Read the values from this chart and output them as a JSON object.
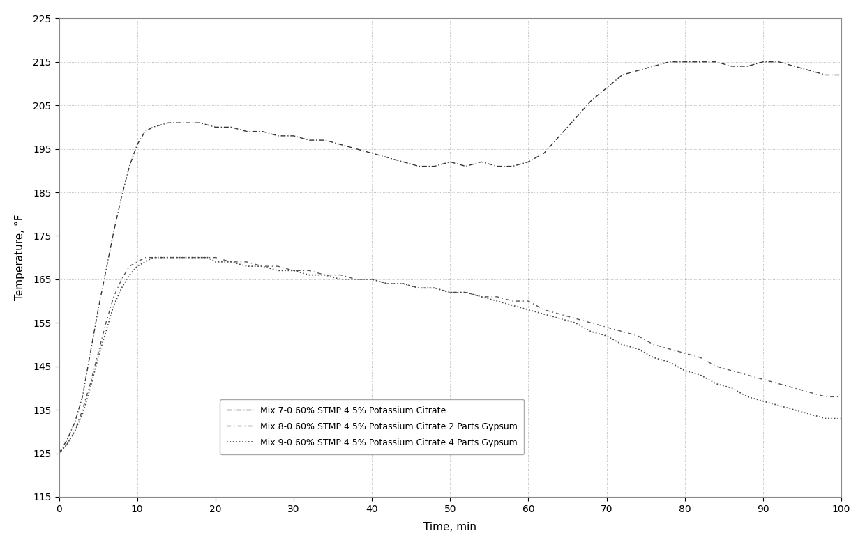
{
  "title": "",
  "xlabel": "Time, min",
  "ylabel": "Temperature, °F",
  "xlim": [
    0,
    100
  ],
  "ylim": [
    115,
    225
  ],
  "yticks": [
    115,
    125,
    135,
    145,
    155,
    165,
    175,
    185,
    195,
    205,
    215,
    225
  ],
  "xticks": [
    0,
    10,
    20,
    30,
    40,
    50,
    60,
    70,
    80,
    90,
    100
  ],
  "background_color": "#ffffff",
  "grid_color": "#888888",
  "legend_labels": [
    "Mix 7-0.60% STMP 4.5% Potassium Citrate",
    "Mix 8-0.60% STMP 4.5% Potassium Citrate 2 Parts Gypsum",
    "Mix 9-0.60% STMP 4.5% Potassium Citrate 4 Parts Gypsum"
  ],
  "mix7_x": [
    0,
    1,
    2,
    3,
    4,
    5,
    6,
    7,
    8,
    9,
    10,
    11,
    12,
    14,
    16,
    18,
    20,
    22,
    24,
    26,
    28,
    30,
    32,
    34,
    36,
    38,
    40,
    42,
    44,
    46,
    48,
    50,
    52,
    54,
    56,
    58,
    60,
    62,
    64,
    65,
    67,
    68,
    70,
    72,
    74,
    76,
    78,
    80,
    82,
    84,
    86,
    88,
    90,
    92,
    94,
    96,
    98,
    100
  ],
  "mix7_y": [
    125,
    128,
    132,
    138,
    148,
    158,
    167,
    176,
    184,
    191,
    196,
    199,
    200,
    201,
    201,
    201,
    200,
    200,
    199,
    199,
    198,
    198,
    197,
    197,
    196,
    195,
    194,
    193,
    192,
    191,
    191,
    192,
    191,
    192,
    191,
    191,
    192,
    194,
    198,
    200,
    204,
    206,
    209,
    212,
    213,
    214,
    215,
    215,
    215,
    215,
    214,
    214,
    215,
    215,
    214,
    213,
    212,
    212
  ],
  "mix8_x": [
    0,
    1,
    2,
    3,
    4,
    5,
    6,
    7,
    8,
    9,
    10,
    11,
    12,
    13,
    14,
    15,
    16,
    17,
    18,
    19,
    20,
    22,
    24,
    26,
    28,
    30,
    32,
    34,
    36,
    38,
    40,
    42,
    44,
    46,
    48,
    50,
    52,
    54,
    56,
    58,
    60,
    62,
    64,
    66,
    68,
    70,
    72,
    74,
    76,
    78,
    80,
    82,
    84,
    86,
    88,
    90,
    92,
    94,
    96,
    98,
    100
  ],
  "mix8_y": [
    125,
    127,
    130,
    135,
    141,
    148,
    155,
    161,
    165,
    168,
    169,
    170,
    170,
    170,
    170,
    170,
    170,
    170,
    170,
    170,
    170,
    169,
    169,
    168,
    168,
    167,
    167,
    166,
    166,
    165,
    165,
    164,
    164,
    163,
    163,
    162,
    162,
    161,
    161,
    160,
    160,
    158,
    157,
    156,
    155,
    154,
    153,
    152,
    150,
    149,
    148,
    147,
    145,
    144,
    143,
    142,
    141,
    140,
    139,
    138,
    138
  ],
  "mix9_x": [
    0,
    1,
    2,
    3,
    4,
    5,
    6,
    7,
    8,
    9,
    10,
    11,
    12,
    13,
    14,
    15,
    16,
    17,
    18,
    19,
    20,
    22,
    24,
    26,
    28,
    30,
    32,
    34,
    36,
    38,
    40,
    42,
    44,
    46,
    48,
    50,
    52,
    54,
    56,
    58,
    60,
    62,
    64,
    66,
    68,
    70,
    72,
    74,
    76,
    78,
    80,
    82,
    84,
    86,
    88,
    90,
    92,
    94,
    96,
    98,
    100
  ],
  "mix9_y": [
    125,
    127,
    130,
    134,
    140,
    147,
    153,
    159,
    163,
    166,
    168,
    169,
    170,
    170,
    170,
    170,
    170,
    170,
    170,
    170,
    169,
    169,
    168,
    168,
    167,
    167,
    166,
    166,
    165,
    165,
    165,
    164,
    164,
    163,
    163,
    162,
    162,
    161,
    160,
    159,
    158,
    157,
    156,
    155,
    153,
    152,
    150,
    149,
    147,
    146,
    144,
    143,
    141,
    140,
    138,
    137,
    136,
    135,
    134,
    133,
    133
  ]
}
